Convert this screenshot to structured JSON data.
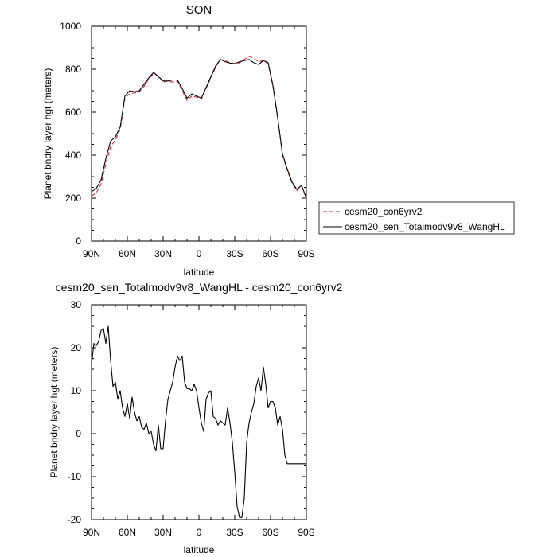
{
  "chart_data": [
    {
      "type": "line",
      "title": "SON",
      "xlabel": "latitude",
      "ylabel": "Planet bndry layer hgt (meters)",
      "xlim": [
        90,
        -90
      ],
      "ylim": [
        0,
        1000
      ],
      "x_ticks": [
        90,
        60,
        30,
        0,
        -30,
        -60,
        -90
      ],
      "x_tick_labels": [
        "90N",
        "60N",
        "30N",
        "0",
        "30S",
        "60S",
        "90S"
      ],
      "y_ticks": [
        0,
        200,
        400,
        600,
        800,
        1000
      ],
      "y_tick_labels": [
        "0",
        "200",
        "400",
        "600",
        "800",
        "1000"
      ],
      "legend": "right-bottom",
      "series": [
        {
          "name": "cesm20_con6yrv2",
          "color": "#e0242a",
          "dash": "dashed",
          "x": [
            90,
            86,
            82,
            78,
            74,
            70,
            66,
            62,
            58,
            54,
            50,
            46,
            42,
            38,
            34,
            30,
            26,
            22,
            18,
            14,
            10,
            6,
            2,
            -2,
            -6,
            -10,
            -14,
            -18,
            -22,
            -26,
            -30,
            -34,
            -38,
            -42,
            -46,
            -50,
            -54,
            -58,
            -62,
            -66,
            -70,
            -74,
            -78,
            -82,
            -86,
            -90
          ],
          "y": [
            210,
            225,
            265,
            360,
            440,
            470,
            520,
            665,
            685,
            690,
            695,
            720,
            755,
            780,
            770,
            740,
            745,
            740,
            745,
            700,
            655,
            675,
            670,
            660,
            710,
            760,
            810,
            845,
            840,
            830,
            825,
            830,
            845,
            860,
            850,
            835,
            840,
            825,
            720,
            570,
            400,
            330,
            270,
            235,
            255,
            200
          ]
        },
        {
          "name": "cesm20_sen_Totalmodv9v8_WangHL",
          "color": "#000000",
          "dash": "solid",
          "x": [
            90,
            86,
            82,
            78,
            74,
            70,
            66,
            62,
            58,
            54,
            50,
            46,
            42,
            38,
            34,
            30,
            26,
            22,
            18,
            14,
            10,
            6,
            2,
            -2,
            -6,
            -10,
            -14,
            -18,
            -22,
            -26,
            -30,
            -34,
            -38,
            -42,
            -46,
            -50,
            -54,
            -58,
            -62,
            -66,
            -70,
            -74,
            -78,
            -82,
            -86,
            -90
          ],
          "y": [
            230,
            245,
            285,
            385,
            465,
            485,
            530,
            675,
            700,
            695,
            700,
            730,
            760,
            785,
            765,
            745,
            745,
            750,
            750,
            710,
            665,
            685,
            675,
            665,
            715,
            765,
            815,
            845,
            835,
            828,
            826,
            835,
            840,
            845,
            830,
            822,
            840,
            830,
            725,
            575,
            405,
            335,
            275,
            240,
            260,
            200
          ]
        }
      ]
    },
    {
      "type": "line",
      "title": "cesm20_sen_Totalmodv9v8_WangHL - cesm20_con6yrv2",
      "xlabel": "latitude",
      "ylabel": "Planet bndry layer hgt (meters)",
      "xlim": [
        90,
        -90
      ],
      "ylim": [
        -20,
        30
      ],
      "x_ticks": [
        90,
        60,
        30,
        0,
        -30,
        -60,
        -90
      ],
      "x_tick_labels": [
        "90N",
        "60N",
        "30N",
        "0",
        "30S",
        "60S",
        "90S"
      ],
      "y_ticks": [
        -20,
        -10,
        0,
        10,
        20,
        30
      ],
      "y_tick_labels": [
        "-20",
        "-10",
        "0",
        "10",
        "20",
        "30"
      ],
      "series": [
        {
          "color": "#000000",
          "dash": "solid",
          "x": [
            90,
            88,
            86,
            84,
            82,
            80,
            78,
            76,
            74,
            72,
            70,
            68,
            66,
            64,
            62,
            60,
            58,
            56,
            54,
            52,
            50,
            48,
            46,
            44,
            42,
            40,
            38,
            36,
            34,
            32,
            30,
            28,
            26,
            24,
            22,
            20,
            18,
            16,
            14,
            12,
            10,
            8,
            6,
            4,
            2,
            0,
            -2,
            -4,
            -6,
            -8,
            -10,
            -12,
            -14,
            -16,
            -18,
            -20,
            -22,
            -24,
            -26,
            -28,
            -30,
            -32,
            -34,
            -36,
            -38,
            -40,
            -42,
            -44,
            -46,
            -48,
            -50,
            -52,
            -54,
            -56,
            -58,
            -60,
            -62,
            -64,
            -66,
            -68,
            -70,
            -72,
            -74,
            -76,
            -78,
            -80,
            -82,
            -84,
            -86,
            -88,
            -90
          ],
          "y": [
            16,
            21,
            20.5,
            21.5,
            24,
            24.5,
            21,
            25,
            17,
            11,
            12,
            8,
            10,
            6,
            4,
            7,
            3.5,
            8.5,
            5,
            3,
            4,
            1.5,
            1,
            2.5,
            0,
            0.5,
            -2.5,
            -4,
            2,
            -3.5,
            -3.5,
            3,
            8,
            10,
            12,
            15.5,
            18,
            17,
            18,
            12,
            10.5,
            10.5,
            10,
            11.5,
            10,
            6,
            2.5,
            0.5,
            8,
            9.5,
            10,
            4,
            3.5,
            2,
            3,
            2.5,
            2,
            6,
            2.5,
            -2,
            -9,
            -17,
            -19.5,
            -19.5,
            -15,
            -2,
            2.5,
            5,
            7,
            11,
            13,
            10,
            15.5,
            11.5,
            6,
            7.5,
            7.5,
            6,
            2,
            4,
            1,
            -5,
            -7,
            -7,
            -7,
            -7,
            -7,
            -7,
            -7,
            -7,
            -7
          ]
        }
      ]
    }
  ],
  "legend": {
    "entries": [
      {
        "label": "cesm20_con6yrv2",
        "color": "#e0242a",
        "dash": "dashed"
      },
      {
        "label": "cesm20_sen_Totalmodv9v8_WangHL",
        "color": "#000000",
        "dash": "solid"
      }
    ]
  }
}
